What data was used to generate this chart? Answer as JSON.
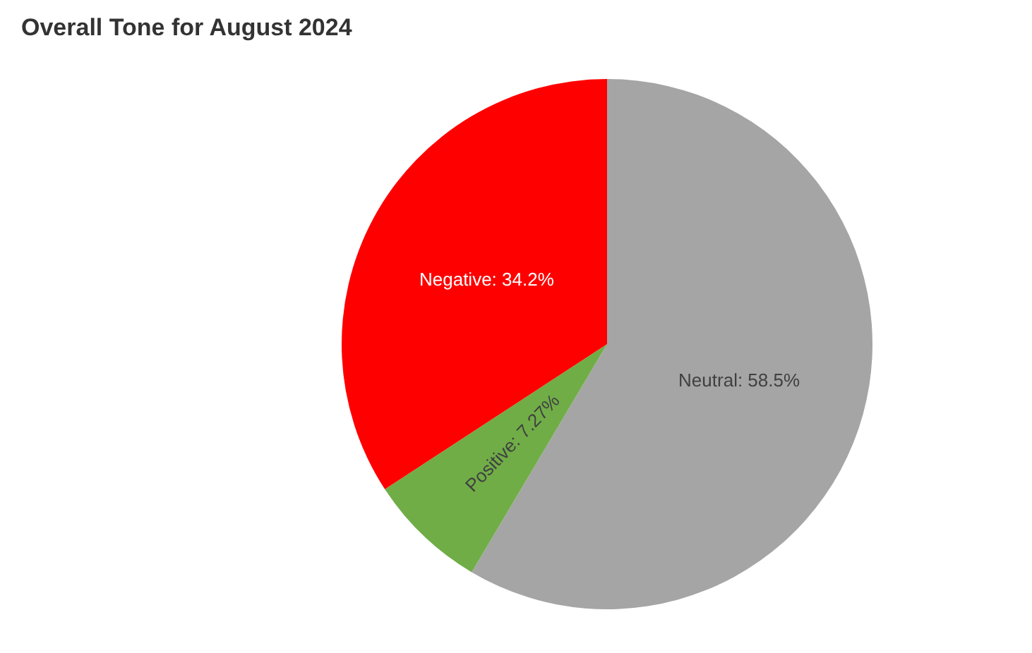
{
  "chart_data": {
    "type": "pie",
    "title": "Overall Tone for August 2024",
    "categories": [
      "Neutral",
      "Positive",
      "Negative"
    ],
    "values": [
      58.5,
      7.27,
      34.2
    ],
    "colors": [
      "#a5a5a5",
      "#70ad47",
      "#ff0000"
    ],
    "value_labels": [
      "58.5%",
      "7.27%",
      "34.2%"
    ],
    "legend": false
  }
}
